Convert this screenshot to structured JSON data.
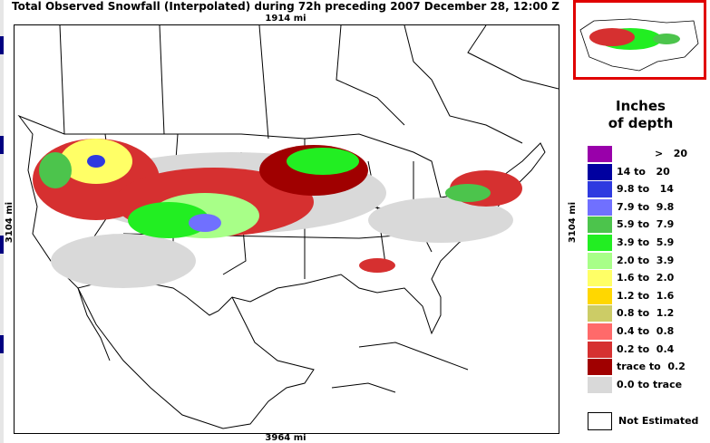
{
  "title": "Total Observed Snowfall (Interpolated) during 72h preceding 2007 December 28, 12:00 Z",
  "scale": {
    "top": "1914 mi",
    "bottom": "3964 mi",
    "left": "3104 mi",
    "right": "3104 mi"
  },
  "legend": {
    "title_line1": "Inches",
    "title_line2": "of depth",
    "classes": [
      {
        "label": ">   20",
        "color": "#9900aa"
      },
      {
        "label": "14 to   20",
        "color": "#0000a0"
      },
      {
        "label": "9.8 to   14",
        "color": "#2e3ae0"
      },
      {
        "label": "7.9 to  9.8",
        "color": "#7070ff"
      },
      {
        "label": "5.9 to  7.9",
        "color": "#4cc44c"
      },
      {
        "label": "3.9 to  5.9",
        "color": "#22ee22"
      },
      {
        "label": "2.0 to  3.9",
        "color": "#a8ff88"
      },
      {
        "label": "1.6 to  2.0",
        "color": "#ffff66"
      },
      {
        "label": "1.2 to  1.6",
        "color": "#ffd700"
      },
      {
        "label": "0.8 to  1.2",
        "color": "#cccc66"
      },
      {
        "label": "0.4 to  0.8",
        "color": "#ff6a6a"
      },
      {
        "label": "0.2 to  0.4",
        "color": "#d63030"
      },
      {
        "label": "trace to  0.2",
        "color": "#a00000"
      },
      {
        "label": "0.0 to trace",
        "color": "#d9d9d9"
      }
    ],
    "not_estimated": "Not Estimated"
  },
  "inset": {
    "frame_color": "#e00000"
  }
}
